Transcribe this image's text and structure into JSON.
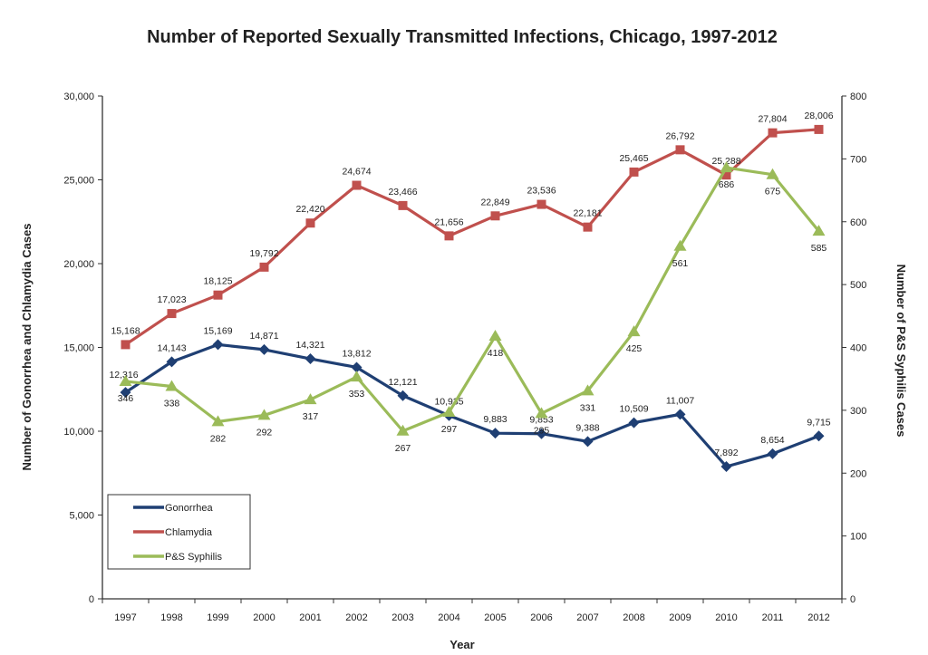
{
  "chart_data": {
    "type": "line",
    "title": "Number of Reported Sexually Transmitted Infections, Chicago, 1997-2012",
    "xlabel": "Year",
    "ylabel": "Number of Gonorrhea and Chlamydia Cases",
    "y2label": "Number of P&S Syphilis Cases",
    "ylim": [
      0,
      30000
    ],
    "y2lim": [
      0,
      800
    ],
    "yticks": [
      "0",
      "5,000",
      "10,000",
      "15,000",
      "20,000",
      "25,000",
      "30,000"
    ],
    "y2ticks": [
      "0",
      "100",
      "200",
      "300",
      "400",
      "500",
      "600",
      "700",
      "800"
    ],
    "categories": [
      "1997",
      "1998",
      "1999",
      "2000",
      "2001",
      "2002",
      "2003",
      "2004",
      "2005",
      "2006",
      "2007",
      "2008",
      "2009",
      "2010",
      "2011",
      "2012"
    ],
    "legend_position": "bottom-left",
    "grid": false,
    "series": [
      {
        "name": "Gonorrhea",
        "axis": "left",
        "color": "#1f3f73",
        "marker": "diamond",
        "values": [
          12316,
          14143,
          15169,
          14871,
          14321,
          13812,
          12121,
          10935,
          9883,
          9853,
          9388,
          10509,
          11007,
          7892,
          8654,
          9715
        ],
        "labels": [
          "12,316",
          "14,143",
          "15,169",
          "14,871",
          "14,321",
          "13,812",
          "12,121",
          "10,935",
          "9,883",
          "9,853",
          "9,388",
          "10,509",
          "11,007",
          "7,892",
          "8,654",
          "9,715"
        ]
      },
      {
        "name": "Chlamydia",
        "axis": "left",
        "color": "#c0504d",
        "marker": "square",
        "values": [
          15168,
          17023,
          18125,
          19792,
          22420,
          24674,
          23466,
          21656,
          22849,
          23536,
          22181,
          25465,
          26792,
          25288,
          27804,
          28006
        ],
        "labels": [
          "15,168",
          "17,023",
          "18,125",
          "19,792",
          "22,420",
          "24,674",
          "23,466",
          "21,656",
          "22,849",
          "23,536",
          "22,181",
          "25,465",
          "26,792",
          "25,288",
          "27,804",
          "28,006"
        ]
      },
      {
        "name": "P&S Syphilis",
        "axis": "right",
        "color": "#9bbb59",
        "marker": "triangle",
        "values": [
          346,
          338,
          282,
          292,
          317,
          353,
          267,
          297,
          418,
          295,
          331,
          425,
          561,
          686,
          675,
          585
        ],
        "labels": [
          "346",
          "338",
          "282",
          "292",
          "317",
          "353",
          "267",
          "297",
          "418",
          "295",
          "331",
          "425",
          "561",
          "686",
          "675",
          "585"
        ]
      }
    ]
  }
}
